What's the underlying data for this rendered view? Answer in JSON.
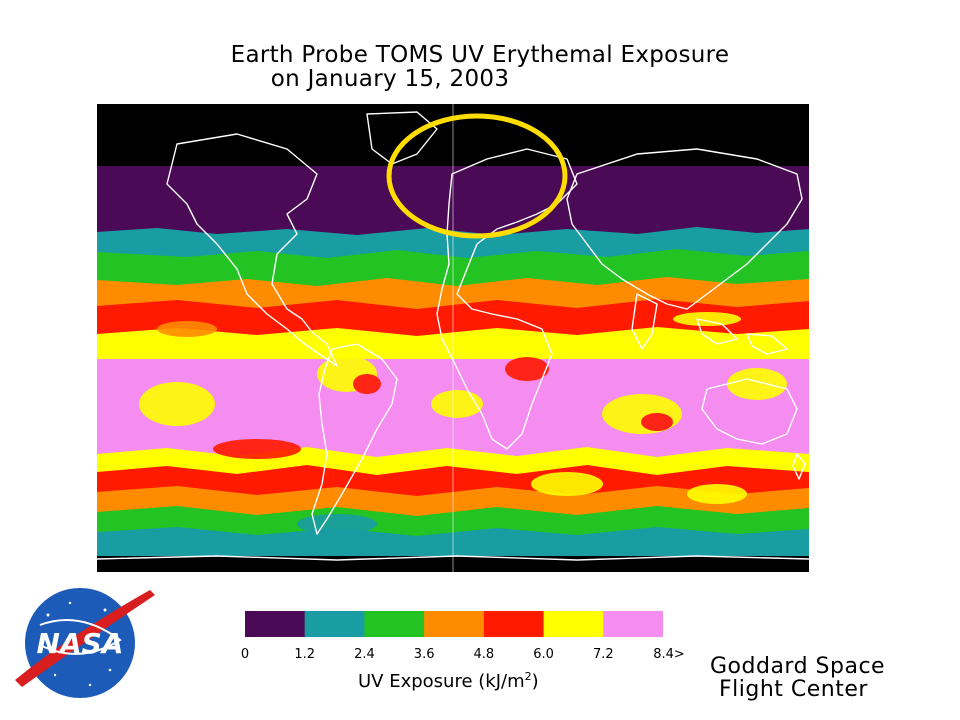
{
  "title": {
    "line1": "Earth Probe TOMS UV Erythemal Exposure",
    "line2": "on January 15, 2003"
  },
  "colors": {
    "polar_night": "#000000",
    "coastline": "#ffffff",
    "highlight_circle": "#ffdd00",
    "bins": [
      "#4a0a55",
      "#1a9ca3",
      "#22c322",
      "#ff8c00",
      "#ff1a00",
      "#ffff00",
      "#f58cf0"
    ]
  },
  "legend": {
    "ticks": [
      "0",
      "1.2",
      "2.4",
      "3.6",
      "4.8",
      "6.0",
      "7.2",
      "8.4>"
    ],
    "unit_text": "UV Exposure (kJ/m",
    "unit_sup": "2",
    "unit_close": ")"
  },
  "credit": {
    "line1": "Goddard Space",
    "line2": "Flight Center"
  },
  "logo": {
    "text": "NASA"
  }
}
